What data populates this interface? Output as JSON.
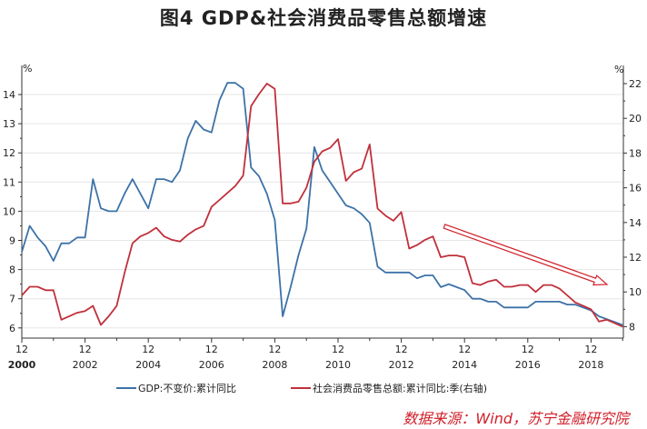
{
  "title": "图4   GDP&社会消费品零售总额增速",
  "source": "数据来源：Wind，苏宁金融研究院",
  "chart_data": {
    "type": "line",
    "title": "图4   GDP&社会消费品零售总额增速",
    "left_unit": "%",
    "right_unit": "%",
    "left_ylim": [
      5.7,
      14.8
    ],
    "right_ylim": [
      7.5,
      22.5
    ],
    "left_ticks": [
      6,
      7,
      8,
      9,
      10,
      11,
      12,
      13,
      14
    ],
    "right_ticks": [
      8,
      10,
      12,
      14,
      16,
      18,
      20,
      22
    ],
    "x_start": "2000-12",
    "x_frequency": "quarterly",
    "x_tick_labels": [
      {
        "month": "12",
        "year": "2000"
      },
      {
        "month": "12",
        "year": "2002"
      },
      {
        "month": "12",
        "year": "2004"
      },
      {
        "month": "12",
        "year": "2006"
      },
      {
        "month": "12",
        "year": "2008"
      },
      {
        "month": "12",
        "year": "2010"
      },
      {
        "month": "12",
        "year": "2012"
      },
      {
        "month": "12",
        "year": "2014"
      },
      {
        "month": "12",
        "year": "2016"
      },
      {
        "month": "12",
        "year": "2018"
      }
    ],
    "grid": true,
    "legend_position": "bottom",
    "series": [
      {
        "name": "GDP:不变价:累计同比",
        "axis": "left",
        "color": "#3d72a8",
        "values": [
          8.6,
          9.5,
          9.1,
          8.8,
          8.3,
          8.9,
          8.9,
          9.1,
          9.1,
          11.1,
          10.1,
          10.0,
          10.0,
          10.6,
          11.1,
          10.6,
          10.1,
          11.1,
          11.1,
          11.0,
          11.4,
          12.5,
          13.1,
          12.8,
          12.7,
          13.8,
          14.4,
          14.4,
          14.2,
          11.5,
          11.2,
          10.6,
          9.7,
          6.4,
          7.4,
          8.5,
          9.4,
          12.2,
          11.4,
          11.0,
          10.6,
          10.2,
          10.1,
          9.9,
          9.6,
          8.1,
          7.9,
          7.9,
          7.9,
          7.9,
          7.7,
          7.8,
          7.8,
          7.4,
          7.5,
          7.4,
          7.3,
          7.0,
          7.0,
          6.9,
          6.9,
          6.7,
          6.7,
          6.7,
          6.7,
          6.9,
          6.9,
          6.9,
          6.9,
          6.8,
          6.8,
          6.7,
          6.6,
          6.4,
          6.3,
          6.2,
          6.1
        ]
      },
      {
        "name": "社会消费品零售总额:累计同比:季(右轴)",
        "axis": "right",
        "color": "#c0303a",
        "values": [
          9.8,
          10.3,
          10.3,
          10.1,
          10.1,
          8.4,
          8.6,
          8.8,
          8.9,
          9.2,
          8.1,
          8.6,
          9.2,
          11.1,
          12.8,
          13.2,
          13.4,
          13.7,
          13.2,
          13.0,
          12.9,
          13.3,
          13.6,
          13.8,
          14.9,
          15.3,
          15.7,
          16.1,
          16.7,
          20.7,
          21.4,
          22.0,
          21.7,
          15.1,
          15.1,
          15.2,
          16.0,
          17.5,
          18.1,
          18.3,
          18.8,
          16.4,
          16.9,
          17.1,
          18.5,
          14.8,
          14.4,
          14.1,
          14.6,
          12.5,
          12.7,
          13.0,
          13.2,
          12.0,
          12.1,
          12.1,
          12.0,
          10.5,
          10.4,
          10.6,
          10.7,
          10.3,
          10.3,
          10.4,
          10.4,
          10.0,
          10.4,
          10.4,
          10.2,
          9.8,
          9.4,
          9.2,
          9.0,
          8.3,
          8.4,
          8.2,
          8.0
        ]
      }
    ],
    "annotations": [
      {
        "type": "arrow",
        "direction": "down-right",
        "color": "#d0202a",
        "from": "2013-06",
        "to": "2019-06"
      }
    ]
  }
}
